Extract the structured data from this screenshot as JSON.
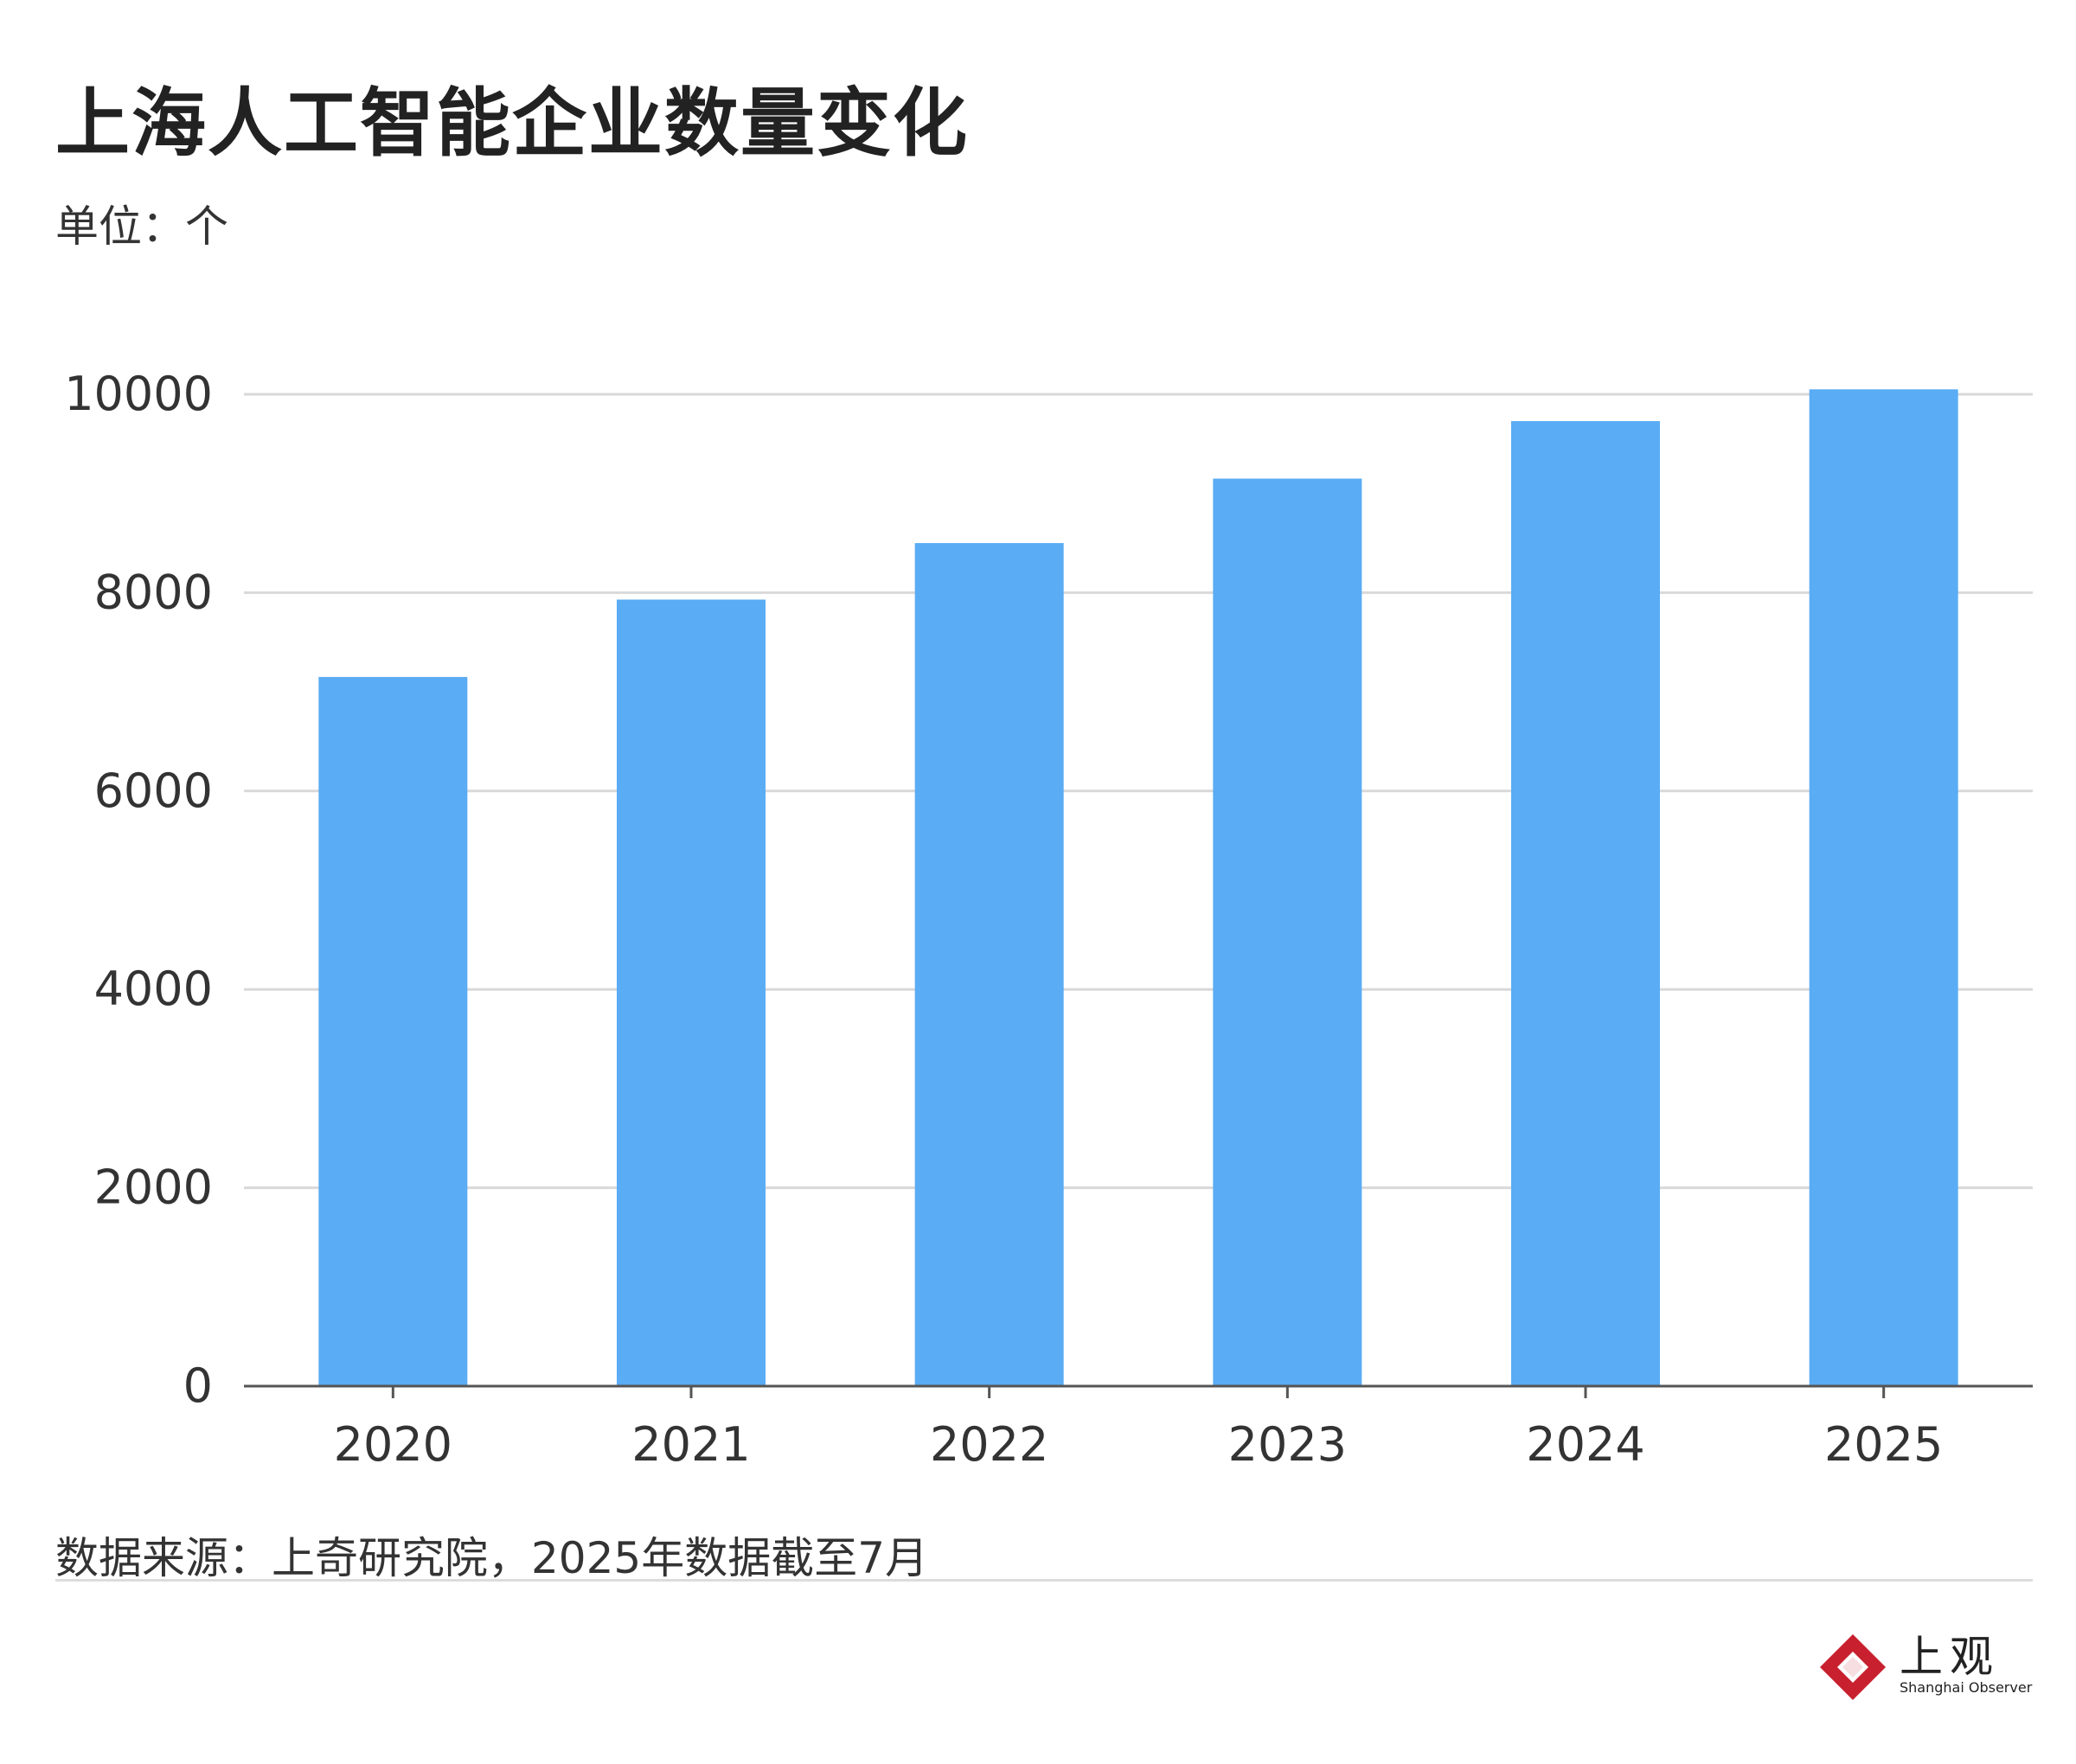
{
  "title": "上海人工智能企业数量变化",
  "unit_label": "单位：个",
  "source": "数据来源：上奇研究院，2025年数据截至7月",
  "logo": {
    "cn": "上观",
    "en": "Shanghai Observer",
    "mark_color": "#c8202f",
    "icon": "shanghai-observer-logo-icon"
  },
  "colors": {
    "bar": "#5aacf4",
    "grid": "#d9d9d9",
    "axis": "#555555",
    "text": "#333333"
  },
  "chart_data": {
    "type": "bar",
    "categories": [
      "2020",
      "2021",
      "2022",
      "2023",
      "2024",
      "2025"
    ],
    "values": [
      7150,
      7930,
      8500,
      9150,
      9730,
      10050
    ],
    "ylim": [
      0,
      10000
    ],
    "yticks": [
      0,
      2000,
      4000,
      6000,
      8000,
      10000
    ],
    "grid": true,
    "legend": "none",
    "xlabel": "",
    "ylabel": ""
  }
}
